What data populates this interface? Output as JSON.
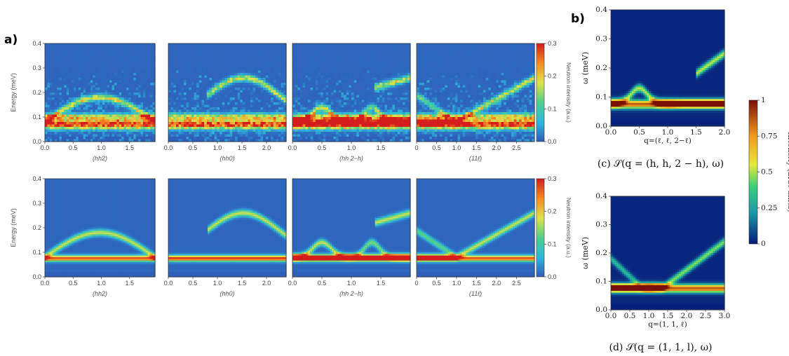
{
  "panel_labels": {
    "a": "a)",
    "b": "b)"
  },
  "colors": {
    "bg": "#2f5bb8",
    "low": "#3e5fc0"
  },
  "chart_data": [
    {
      "id": "a-top-hh2",
      "type": "heatmap",
      "panel": "a",
      "row": "experiment",
      "xlabel": "(hh2)",
      "ylabel": "Energy (meV)",
      "xticks": [
        "0.0",
        "0.5",
        "1.0",
        "1.5"
      ],
      "xlim": [
        0,
        1.95
      ],
      "yticks": [
        "0.0",
        "0.1",
        "0.2",
        "0.3",
        "0.4"
      ],
      "ylim": [
        0,
        0.4
      ],
      "bands": [
        {
          "y": 0.07,
          "w": 0.018,
          "i": 0.95
        },
        {
          "y": 0.1,
          "w": 0.014,
          "i": 0.55
        }
      ],
      "dispersion": "dome",
      "dome_max": 0.15,
      "noise": true
    },
    {
      "id": "a-top-hh0",
      "type": "heatmap",
      "panel": "a",
      "row": "experiment",
      "xlabel": "(hh0)",
      "xticks": [
        "0.0",
        "0.5",
        "1.0",
        "1.5",
        "2.0"
      ],
      "xlim": [
        0,
        2.4
      ],
      "ylim": [
        0,
        0.4
      ],
      "bands": [
        {
          "y": 0.07,
          "w": 0.018,
          "i": 0.9
        },
        {
          "y": 0.1,
          "w": 0.014,
          "i": 0.55
        }
      ],
      "dispersion": "arc",
      "noise": true
    },
    {
      "id": "a-top-hh2-h",
      "type": "heatmap",
      "panel": "a",
      "row": "experiment",
      "xlabel": "(hh 2−h)",
      "xticks": [
        "0.0",
        "0.5",
        "1.0",
        "1.5"
      ],
      "xlim": [
        0,
        2.0
      ],
      "ylim": [
        0,
        0.4
      ],
      "bands": [
        {
          "y": 0.07,
          "w": 0.018,
          "i": 0.95
        },
        {
          "y": 0.1,
          "w": 0.014,
          "i": 0.55
        }
      ],
      "dispersion": "bumps",
      "noise": true
    },
    {
      "id": "a-top-11l",
      "type": "heatmap",
      "panel": "a",
      "row": "experiment",
      "xlabel": "(11ℓ)",
      "xticks": [
        "0",
        "0.5",
        "1.0",
        "1.5",
        "2.0",
        "2.5"
      ],
      "xlim": [
        0,
        2.95
      ],
      "ylim": [
        0,
        0.4
      ],
      "bands": [
        {
          "y": 0.07,
          "w": 0.018,
          "i": 0.95
        },
        {
          "y": 0.1,
          "w": 0.014,
          "i": 0.55
        }
      ],
      "dispersion": "v",
      "noise": true
    },
    {
      "id": "a-bot-hh2",
      "type": "heatmap",
      "panel": "a",
      "row": "calculation",
      "xlabel": "(hh2)",
      "ylabel": "Energy (meV)",
      "xticks": [
        "0.0",
        "0.5",
        "1.0",
        "1.5"
      ],
      "xlim": [
        0,
        1.95
      ],
      "yticks": [
        "0.0",
        "0.1",
        "0.2",
        "0.3",
        "0.4"
      ],
      "ylim": [
        0,
        0.4
      ],
      "bands": [
        {
          "y": 0.075,
          "w": 0.012,
          "i": 0.9
        }
      ],
      "dispersion": "dome",
      "dome_max": 0.18,
      "noise": false
    },
    {
      "id": "a-bot-hh0",
      "type": "heatmap",
      "panel": "a",
      "row": "calculation",
      "xlabel": "(hh0)",
      "xticks": [
        "0.0",
        "0.5",
        "1.0",
        "1.5",
        "2.0"
      ],
      "xlim": [
        0,
        2.4
      ],
      "ylim": [
        0,
        0.4
      ],
      "bands": [
        {
          "y": 0.075,
          "w": 0.012,
          "i": 0.95
        }
      ],
      "dispersion": "arc",
      "noise": false
    },
    {
      "id": "a-bot-hh2-h",
      "type": "heatmap",
      "panel": "a",
      "row": "calculation",
      "xlabel": "(hh 2−h)",
      "xticks": [
        "0.0",
        "0.5",
        "1.0",
        "1.5"
      ],
      "xlim": [
        0,
        2.0
      ],
      "ylim": [
        0,
        0.4
      ],
      "bands": [
        {
          "y": 0.075,
          "w": 0.012,
          "i": 0.9
        }
      ],
      "dispersion": "bumps",
      "noise": false
    },
    {
      "id": "a-bot-11l",
      "type": "heatmap",
      "panel": "a",
      "row": "calculation",
      "xlabel": "(11ℓ)",
      "xticks": [
        "0",
        "0.5",
        "1.0",
        "1.5",
        "2.0",
        "2.5"
      ],
      "xlim": [
        0,
        2.95
      ],
      "ylim": [
        0,
        0.4
      ],
      "bands": [
        {
          "y": 0.075,
          "w": 0.012,
          "i": 0.9
        }
      ],
      "dispersion": "v",
      "noise": false
    },
    {
      "id": "b-c",
      "type": "heatmap",
      "panel": "b",
      "xlabel": "q=(ℓ, ℓ, 2−ℓ)",
      "ylabel": "ω (meV)",
      "xticks": [
        "0.0",
        "0.5",
        "1.0",
        "1.5",
        "2.0"
      ],
      "xlim": [
        0,
        2.0
      ],
      "yticks": [
        "0.0",
        "0.1",
        "0.2",
        "0.3",
        "0.4"
      ],
      "ylim": [
        0,
        0.4
      ],
      "caption": "(c)  𝒮(q = (h, h, 2 − h), ω)",
      "bands": [
        {
          "y": 0.075,
          "w": 0.014,
          "i": 0.85
        }
      ],
      "dispersion": "bumps_b",
      "noise": false
    },
    {
      "id": "b-d",
      "type": "heatmap",
      "panel": "b",
      "xlabel": "q=(1, 1, ℓ)",
      "ylabel": "ω (meV)",
      "xticks": [
        "0.0",
        "0.5",
        "1.0",
        "1.5",
        "2.0",
        "2.5",
        "3.0"
      ],
      "xlim": [
        0,
        3.0
      ],
      "yticks": [
        "0.0",
        "0.1",
        "0.2",
        "0.3",
        "0.4"
      ],
      "ylim": [
        0,
        0.4
      ],
      "caption": "(d)  𝒮(q = (1, 1, l), ω)",
      "bands": [
        {
          "y": 0.075,
          "w": 0.014,
          "i": 0.85
        }
      ],
      "dispersion": "v_b",
      "noise": false
    }
  ],
  "colorbars": [
    {
      "id": "cb-top",
      "label": "Neutron intensity (a.u.)",
      "ticks": [
        "0.0",
        "0.1",
        "0.2",
        "0.3"
      ]
    },
    {
      "id": "cb-bot",
      "label": "Neutron intensity (a.u.)",
      "ticks": [
        "0.0",
        "0.1",
        "0.2",
        "0.3"
      ]
    },
    {
      "id": "cb-b",
      "label": "Intensity (arb. units)",
      "ticks": [
        "0",
        "0.25",
        "0.5",
        "0.75",
        "1"
      ]
    }
  ]
}
